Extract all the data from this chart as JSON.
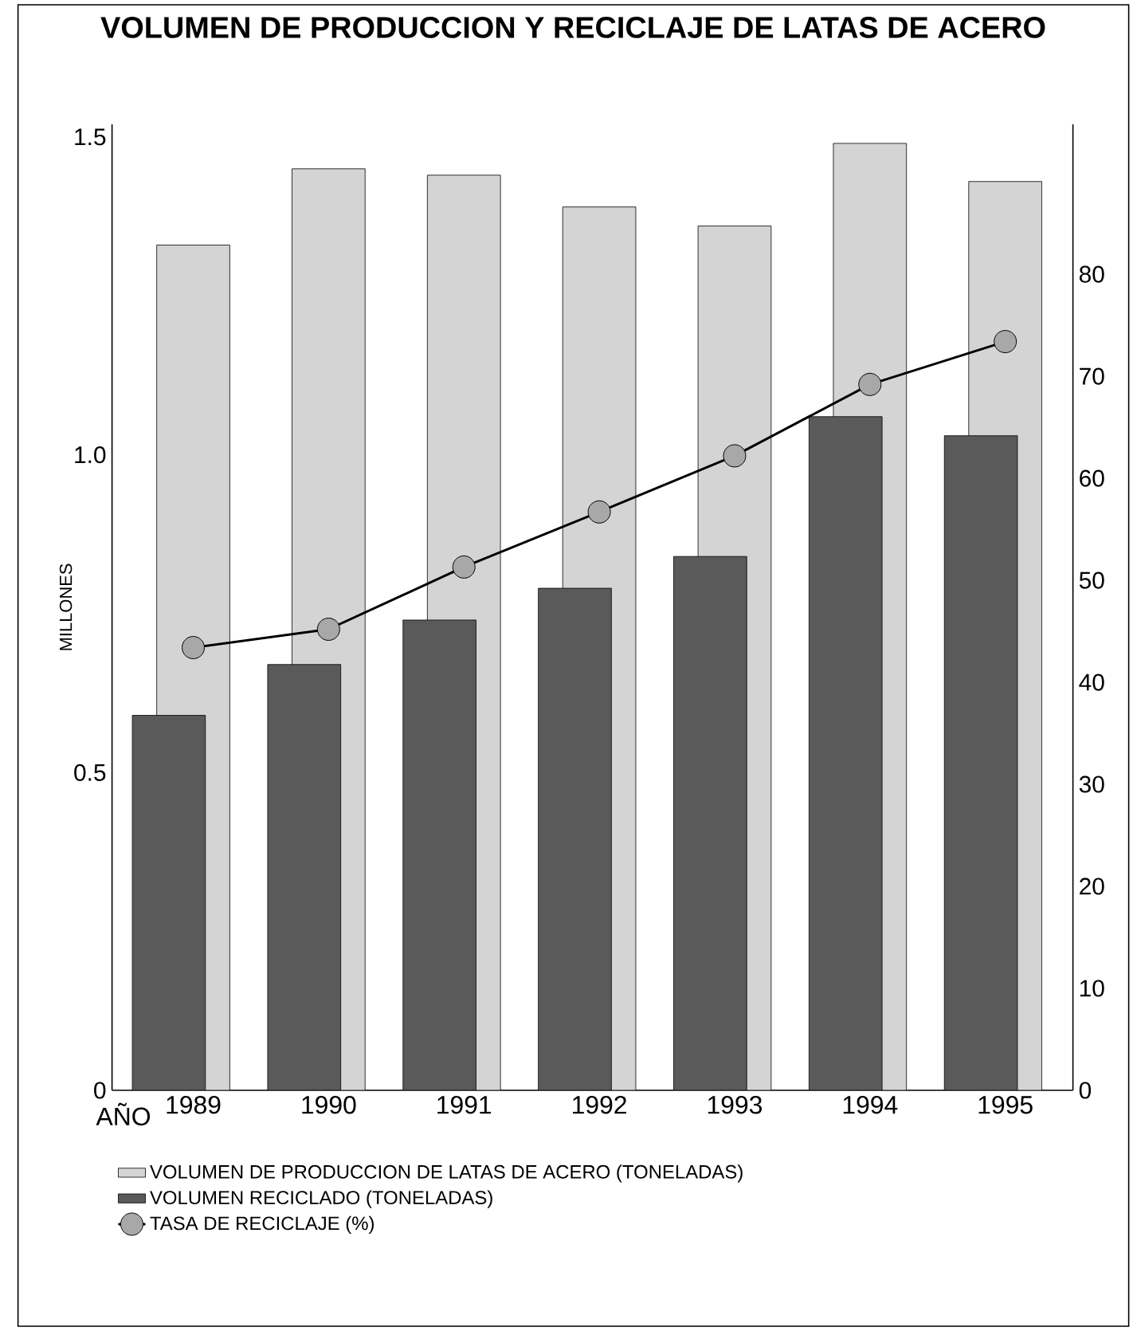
{
  "chart_data": {
    "type": "bar",
    "title": "VOLUMEN DE PRODUCCION Y RECICLAJE DE LATAS DE ACERO",
    "ylabel": "MILLONES",
    "annotations": [
      "AÑO"
    ],
    "categories": [
      "1989",
      "1990",
      "1991",
      "1992",
      "1993",
      "1994",
      "1995"
    ],
    "series": [
      {
        "name": "VOLUMEN DE PRODUCCION DE LATAS DE ACERO (TONELADAS)",
        "color": "#d4d4d4",
        "values": [
          1.33,
          1.45,
          1.44,
          1.39,
          1.36,
          1.49,
          1.43
        ]
      },
      {
        "name": "VOLUMEN RECICLADO (TONELADAS)",
        "color": "#5a5a5a",
        "values": [
          0.59,
          0.67,
          0.74,
          0.79,
          0.84,
          1.06,
          1.03
        ]
      },
      {
        "name": "TASA DE RECICLAJE (%)",
        "type": "line",
        "axis": "y2",
        "color": "#a8a8a8",
        "marker": "circle",
        "values": [
          43.4,
          45.2,
          51.3,
          56.7,
          62.2,
          69.2,
          73.4
        ]
      }
    ],
    "ylim": [
      0,
      1.52
    ],
    "yticks": [
      0,
      0.5,
      {
        "value": 1,
        "label": "1.0"
      },
      1.5
    ],
    "y2lim": [
      0,
      94.7
    ],
    "y2ticks": [
      0,
      10,
      20,
      30,
      40,
      50,
      60,
      70,
      80
    ],
    "legend": "bottom",
    "grid": false
  }
}
